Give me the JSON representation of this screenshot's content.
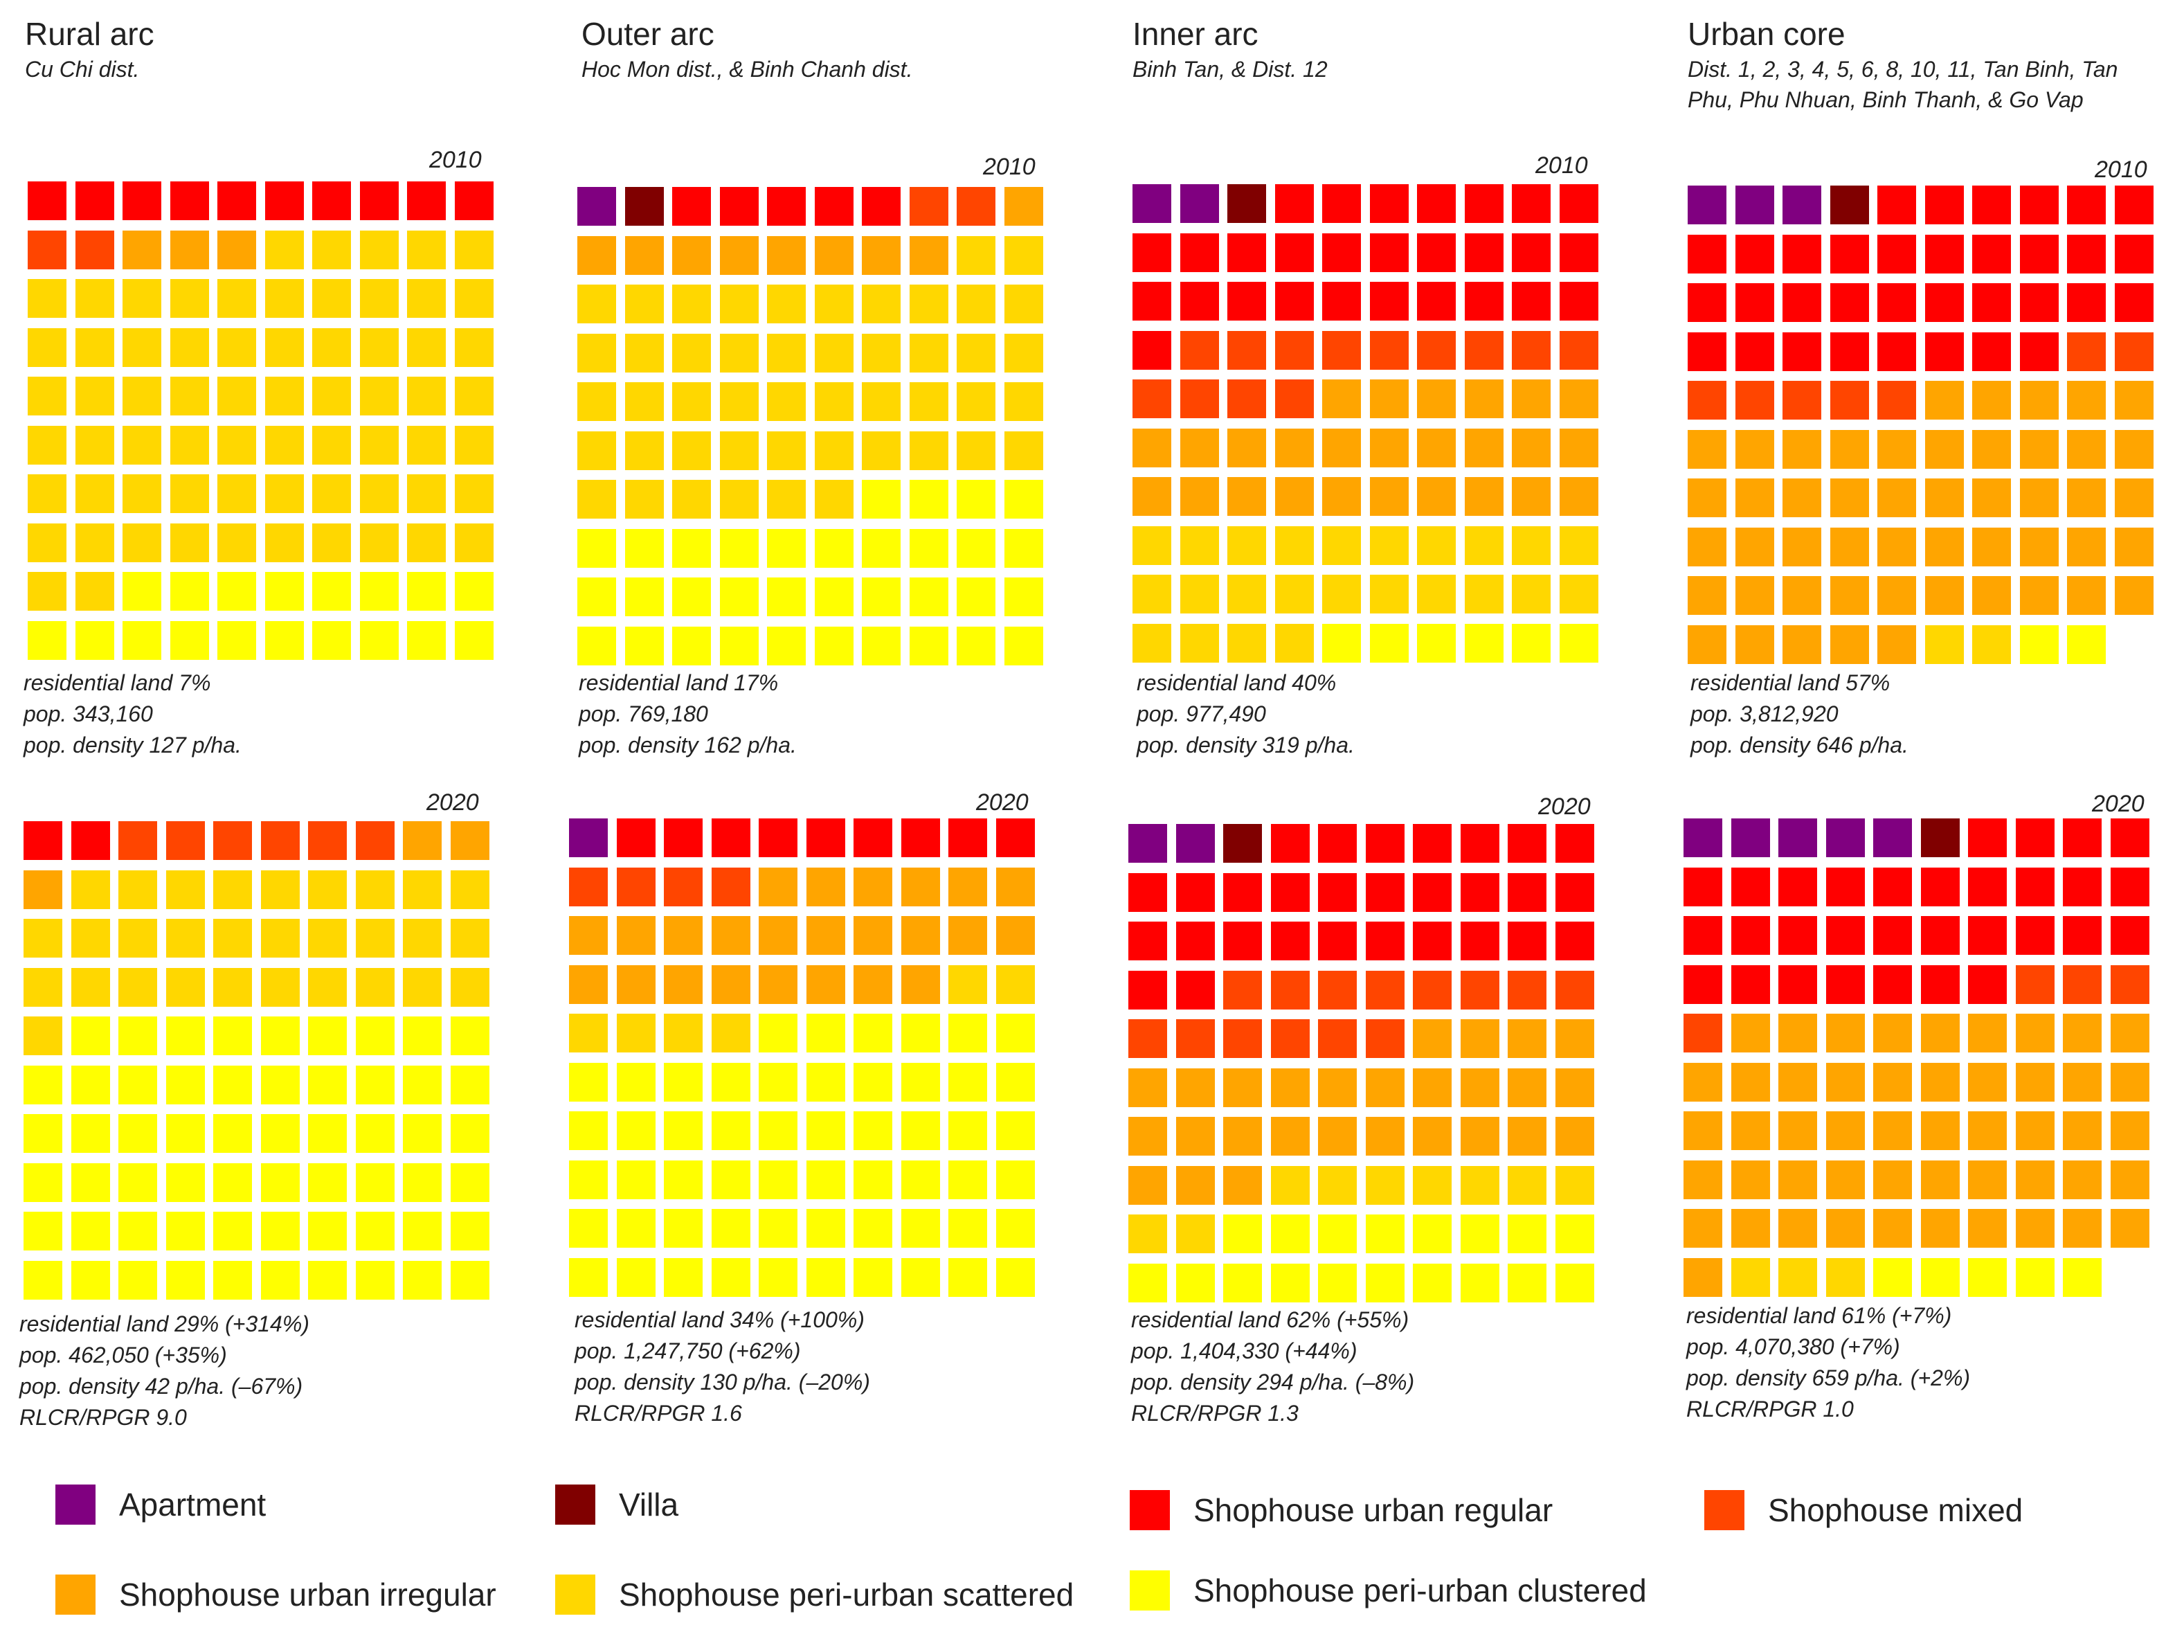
{
  "palette": {
    "A": "#800080",
    "V": "#800000",
    "R": "#ff0000",
    "M": "#ff4500",
    "I": "#ffa500",
    "S": "#ffd700",
    "C": "#ffff00"
  },
  "legend": [
    {
      "key": "A",
      "label": "Apartment"
    },
    {
      "key": "V",
      "label": "Villa"
    },
    {
      "key": "R",
      "label": "Shophouse urban regular"
    },
    {
      "key": "M",
      "label": "Shophouse mixed"
    },
    {
      "key": "I",
      "label": "Shophouse urban irregular"
    },
    {
      "key": "S",
      "label": "Shophouse peri-urban scattered"
    },
    {
      "key": "C",
      "label": "Shophouse peri-urban clustered"
    }
  ],
  "columns": [
    {
      "title": "Rural arc",
      "subtitle": "Cu Chi dist."
    },
    {
      "title": "Outer arc",
      "subtitle": "Hoc Mon dist., & Binh Chanh dist."
    },
    {
      "title": "Inner arc",
      "subtitle": "Binh Tan, & Dist. 12"
    },
    {
      "title": "Urban core",
      "subtitle": "Dist. 1, 2, 3, 4, 5, 6, 8, 10, 11, Tan Binh, Tan Phu, Phu Nhuan, Binh Thanh, & Go Vap"
    }
  ],
  "panels": [
    {
      "year": "2010",
      "stats": [
        "residential land 7%",
        "pop. 343,160",
        "pop. density 127 p/ha."
      ]
    },
    {
      "year": "2010",
      "stats": [
        "residential land 17%",
        "pop. 769,180",
        "pop. density  162 p/ha."
      ]
    },
    {
      "year": "2010",
      "stats": [
        "residential land 40%",
        "pop. 977,490",
        "pop. density 319 p/ha."
      ]
    },
    {
      "year": "2010",
      "stats": [
        "residential land 57%",
        "pop. 3,812,920",
        "pop. density  646 p/ha."
      ]
    },
    {
      "year": "2020",
      "stats": [
        "residential land 29% (+314%)",
        "pop. 462,050 (+35%)",
        "pop. density  42 p/ha. (–67%)",
        "RLCR/RPGR 9.0"
      ]
    },
    {
      "year": "2020",
      "stats": [
        "residential land 34% (+100%)",
        "pop. 1,247,750 (+62%)",
        "pop. density 130 p/ha. (–20%)",
        "RLCR/RPGR 1.6"
      ]
    },
    {
      "year": "2020",
      "stats": [
        "residential land 62% (+55%)",
        "pop. 1,404,330 (+44%)",
        "pop. density 294 p/ha. (–8%)",
        "RLCR/RPGR 1.3"
      ]
    },
    {
      "year": "2020",
      "stats": [
        "residential land 61% (+7%)",
        "pop. 4,070,380 (+7%)",
        "pop. density 659 p/ha. (+2%)",
        "RLCR/RPGR 1.0"
      ]
    }
  ],
  "chart_data": {
    "type": "waffle",
    "grid": "10x10",
    "unit": "percent of residential land per housing type (1 cell = 1%)",
    "order": [
      "Apartment",
      "Villa",
      "Shophouse urban regular",
      "Shophouse mixed",
      "Shophouse urban irregular",
      "Shophouse peri-urban scattered",
      "Shophouse peri-urban clustered"
    ],
    "waffles": [
      {
        "region": "Rural arc",
        "year": "2010",
        "cells": "RRRRRRRRRRMMIIISSSSSSSSSSSSSSSSSSSSSSSSSSSSSSSSSSSSSSSSSSSSSSSSSSSSSSSSSSSSSSSSSSSCCCCCCCCCCCCCCCCCC"
      },
      {
        "region": "Outer arc",
        "year": "2010",
        "cells": "AVRRRRRMMIIIIIIIIISSSSSSSSSSSSSSSSSSSSSSSSSSSSSSSSSSSSSSSSSSSSSSSSCCCCCCCCCCCCCCCCCCCCCCCCCCCCCCCCCC"
      },
      {
        "region": "Inner arc",
        "year": "2010",
        "cells": "AAVRRRRRRRRRRRRRRRRRRRRRRRRRRRRMMMMMMMMMMMMMIIIIIIIIIIIIIIIIIIIIIIIIIISSSSSSSSSSSSSSSSSSSSSSSSCCCCCC"
      },
      {
        "region": "Urban core",
        "year": "2010",
        "cells": "AAAVRRRRRRRRRRRRRRRRRRRRRRRRRRRRRRRRRRMMMMMMMIIIIIIIIIIIIIIIIIIIIIIIIIIIIIIIIIIIIIIIIIIIIIIIIIISSCC"
      },
      {
        "region": "Rural arc",
        "year": "2020",
        "cells": "RRMMMMMMIIISSSSSSSSSSSSSSSSSSSSSSSSSSSSSSCCCCCCCCCCCCCCCCCCCCCCCCCCCCCCCCCCCCCCCCCCCCCCCCCCCCCCCCCCCCC"
      },
      {
        "region": "Outer arc",
        "year": "2020",
        "cells": "ARRRRRRRRRMMMMIIIIIIIIIIIIIIIIIIIIIIIISSSSSSCCCCCCCCCCCCCCCCCCCCCCCCCCCCCCCCCCCCCCCCCCCCCCCCCCCCCCCC"
      },
      {
        "region": "Inner arc",
        "year": "2020",
        "cells": "AAVRRRRRRRRRRRRRRRRRRRRRRRRRRRRRMMMMMMMMMMMMMMIIIIIIIIIIIIIIIIIIIIIIIIIIISSSSSSSSSCCCCCCCCCCCCCCCCCC"
      },
      {
        "region": "Urban core",
        "year": "2020",
        "cells": "AAAAAVRRRRRRRRRRRRRRRRRRRRRRRRRRRRRRRMMMMIIIIIIIIIIIIIIIIIIIIIIIIIIIIIIIIIIIIIIIIIIIIIIIIIISSSCCCCC"
      }
    ]
  }
}
